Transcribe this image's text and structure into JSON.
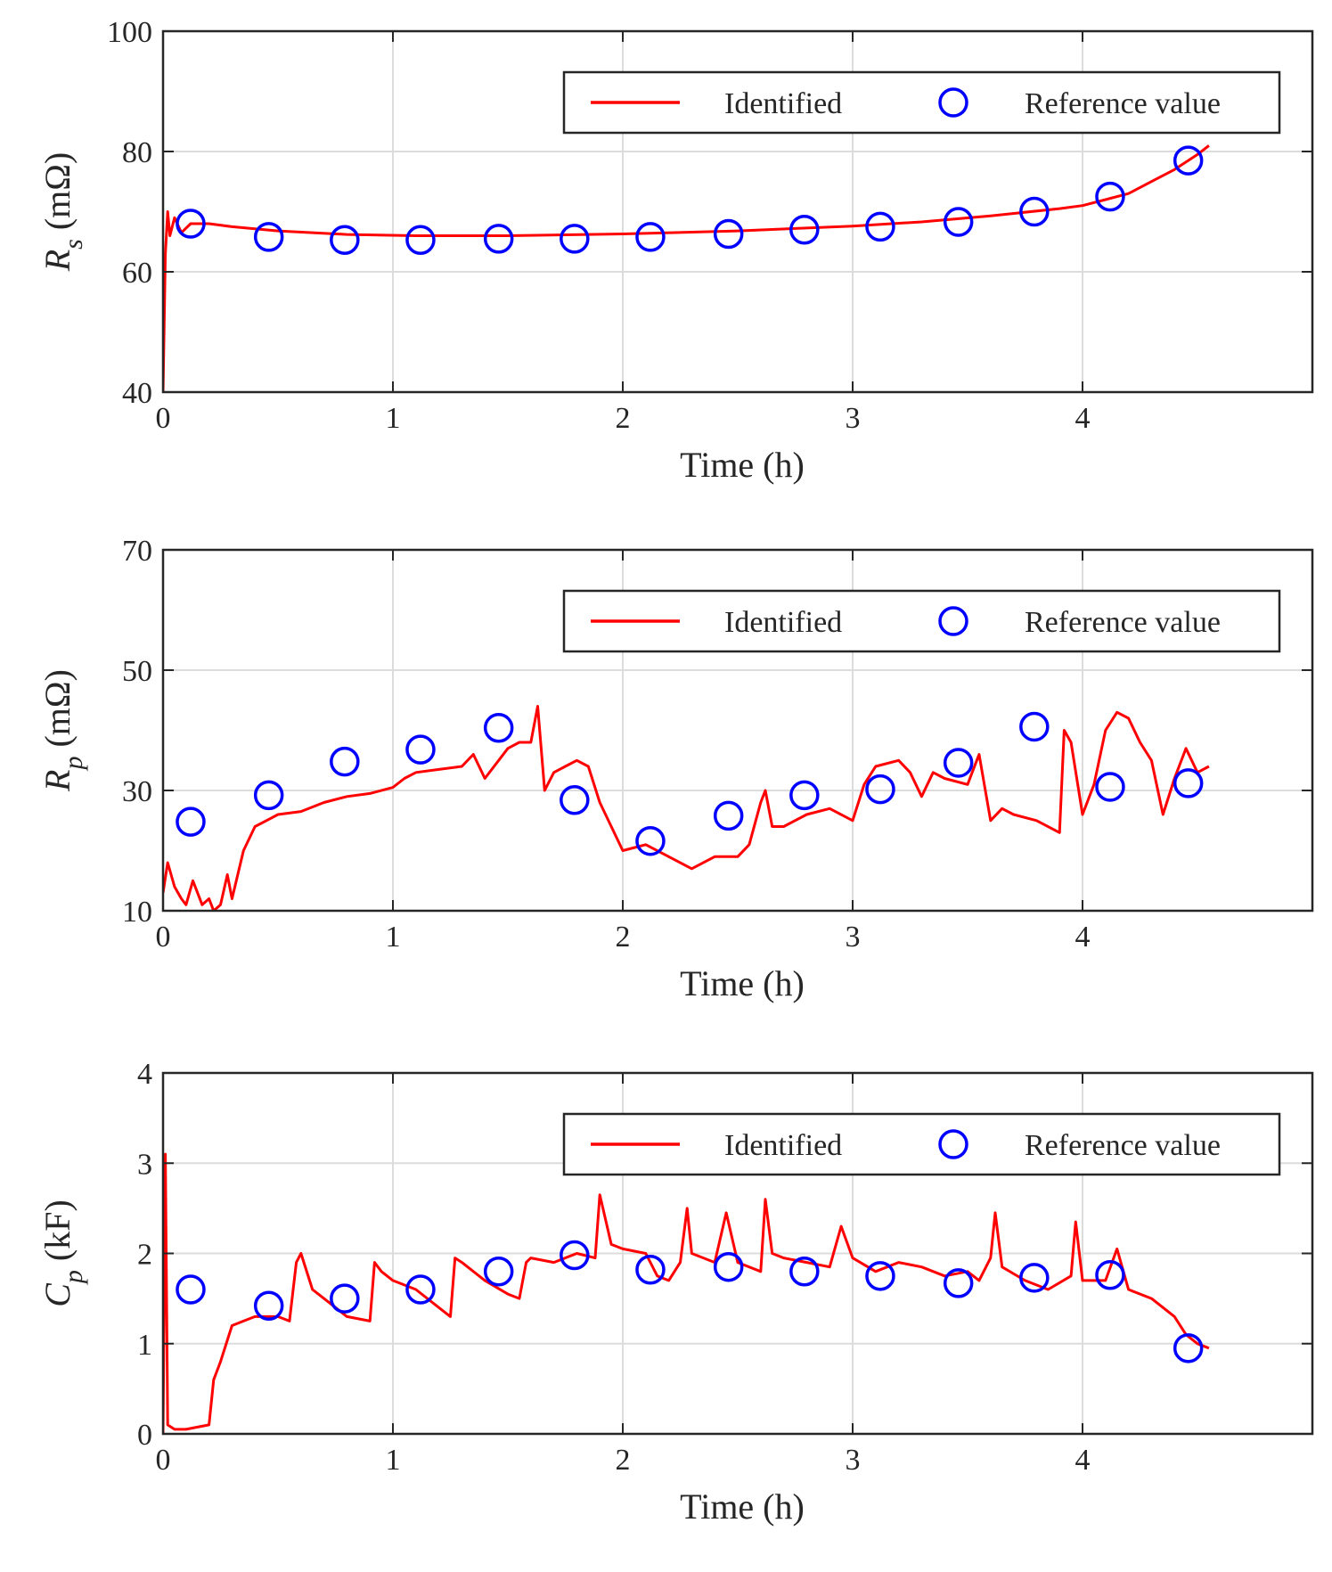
{
  "colors": {
    "identified": "#ff0000",
    "reference": "#0000ff",
    "axis": "#262626",
    "grid": "#dcdcdc"
  },
  "chart_data": [
    {
      "type": "line",
      "xlabel": "Time (h)",
      "ylabel": {
        "sym": "R",
        "sub": "s",
        "unit": " (mΩ)"
      },
      "xlim": [
        0,
        5
      ],
      "ylim": [
        40,
        100
      ],
      "xticks": [
        "0",
        "1",
        "2",
        "3",
        "4"
      ],
      "yticks": [
        "40",
        "60",
        "80",
        "100"
      ],
      "grid": true,
      "legend_position": "top-right",
      "legend": [
        "Identified",
        "Reference value"
      ],
      "series": [
        {
          "name": "Identified",
          "x": [
            0.0,
            0.01,
            0.02,
            0.03,
            0.05,
            0.08,
            0.12,
            0.2,
            0.3,
            0.5,
            0.8,
            1.1,
            1.5,
            2.0,
            2.5,
            3.0,
            3.3,
            3.6,
            3.9,
            4.0,
            4.1,
            4.2,
            4.3,
            4.4,
            4.5,
            4.55
          ],
          "y": [
            40,
            63,
            70,
            66,
            69,
            66.5,
            68,
            68,
            67.5,
            66.8,
            66.2,
            66.0,
            66.0,
            66.3,
            66.8,
            67.6,
            68.3,
            69.3,
            70.5,
            71.0,
            72.0,
            73.0,
            75.0,
            77.0,
            79.5,
            81.0
          ]
        },
        {
          "name": "Reference value",
          "x": [
            0.12,
            0.46,
            0.79,
            1.12,
            1.46,
            1.79,
            2.12,
            2.46,
            2.79,
            3.12,
            3.46,
            3.79,
            4.12,
            4.46
          ],
          "y": [
            68,
            65.8,
            65.3,
            65.3,
            65.5,
            65.5,
            65.8,
            66.3,
            67,
            67.5,
            68.3,
            70,
            72.5,
            78.5
          ]
        }
      ]
    },
    {
      "type": "line",
      "xlabel": "Time (h)",
      "ylabel": {
        "sym": "R",
        "sub": "p",
        "unit": " (mΩ)"
      },
      "xlim": [
        0,
        5
      ],
      "ylim": [
        10,
        70
      ],
      "xticks": [
        "0",
        "1",
        "2",
        "3",
        "4"
      ],
      "yticks": [
        "10",
        "30",
        "50",
        "70"
      ],
      "grid": true,
      "legend_position": "top-right",
      "legend": [
        "Identified",
        "Reference value"
      ],
      "series": [
        {
          "name": "Identified",
          "x": [
            0.0,
            0.02,
            0.05,
            0.08,
            0.1,
            0.13,
            0.17,
            0.2,
            0.22,
            0.25,
            0.28,
            0.3,
            0.35,
            0.4,
            0.45,
            0.5,
            0.6,
            0.7,
            0.8,
            0.9,
            1.0,
            1.05,
            1.1,
            1.2,
            1.3,
            1.35,
            1.4,
            1.5,
            1.55,
            1.6,
            1.63,
            1.66,
            1.7,
            1.75,
            1.8,
            1.85,
            1.9,
            1.95,
            2.0,
            2.1,
            2.2,
            2.3,
            2.4,
            2.5,
            2.55,
            2.6,
            2.62,
            2.65,
            2.7,
            2.8,
            2.9,
            3.0,
            3.05,
            3.1,
            3.2,
            3.25,
            3.3,
            3.35,
            3.4,
            3.5,
            3.55,
            3.6,
            3.65,
            3.7,
            3.8,
            3.9,
            3.92,
            3.95,
            4.0,
            4.05,
            4.1,
            4.15,
            4.2,
            4.25,
            4.3,
            4.35,
            4.4,
            4.45,
            4.5,
            4.55
          ],
          "y": [
            13,
            18,
            14,
            12,
            11,
            15,
            11,
            12,
            10,
            11,
            16,
            12,
            20,
            24,
            25,
            26,
            26.5,
            28,
            29,
            29.5,
            30.5,
            32,
            33,
            33.5,
            34,
            36,
            32,
            37,
            38,
            38,
            44,
            30,
            33,
            34,
            35,
            34,
            28,
            24,
            20,
            21,
            19,
            17,
            19,
            19,
            21,
            28,
            30,
            24,
            24,
            26,
            27,
            25,
            31,
            34,
            35,
            33,
            29,
            33,
            32,
            31,
            36,
            25,
            27,
            26,
            25,
            23,
            40,
            38,
            26,
            31,
            40,
            43,
            42,
            38,
            35,
            26,
            32,
            37,
            33,
            34
          ]
        },
        {
          "name": "Reference value",
          "x": [
            0.12,
            0.46,
            0.79,
            1.12,
            1.46,
            1.79,
            2.12,
            2.46,
            2.79,
            3.12,
            3.46,
            3.79,
            4.12,
            4.46
          ],
          "y": [
            24.8,
            29.2,
            34.8,
            36.8,
            40.4,
            28.4,
            21.6,
            25.8,
            29.2,
            30.2,
            34.6,
            40.6,
            30.6,
            31.2
          ]
        }
      ]
    },
    {
      "type": "line",
      "xlabel": "Time (h)",
      "ylabel": {
        "sym": "C",
        "sub": "p",
        "unit": " (kF)"
      },
      "xlim": [
        0,
        5
      ],
      "ylim": [
        0,
        4
      ],
      "xticks": [
        "0",
        "1",
        "2",
        "3",
        "4"
      ],
      "yticks": [
        "0",
        "1",
        "2",
        "3",
        "4"
      ],
      "grid": true,
      "legend_position": "top-right",
      "legend": [
        "Identified",
        "Reference value"
      ],
      "series": [
        {
          "name": "Identified",
          "x": [
            0.0,
            0.01,
            0.02,
            0.05,
            0.1,
            0.2,
            0.22,
            0.25,
            0.3,
            0.35,
            0.4,
            0.45,
            0.5,
            0.55,
            0.58,
            0.6,
            0.65,
            0.7,
            0.8,
            0.9,
            0.92,
            0.95,
            1.0,
            1.1,
            1.2,
            1.25,
            1.27,
            1.3,
            1.4,
            1.5,
            1.55,
            1.58,
            1.6,
            1.7,
            1.8,
            1.88,
            1.9,
            1.95,
            2.0,
            2.1,
            2.15,
            2.2,
            2.25,
            2.28,
            2.3,
            2.4,
            2.45,
            2.5,
            2.6,
            2.62,
            2.65,
            2.7,
            2.8,
            2.9,
            2.95,
            3.0,
            3.1,
            3.2,
            3.3,
            3.4,
            3.5,
            3.55,
            3.6,
            3.62,
            3.65,
            3.75,
            3.85,
            3.95,
            3.97,
            4.0,
            4.1,
            4.15,
            4.2,
            4.3,
            4.4,
            4.45,
            4.5,
            4.55
          ],
          "y": [
            0.0,
            3.1,
            0.1,
            0.05,
            0.05,
            0.1,
            0.6,
            0.8,
            1.2,
            1.25,
            1.3,
            1.3,
            1.3,
            1.25,
            1.9,
            2.0,
            1.6,
            1.5,
            1.3,
            1.25,
            1.9,
            1.8,
            1.7,
            1.6,
            1.4,
            1.3,
            1.95,
            1.9,
            1.7,
            1.55,
            1.5,
            1.9,
            1.95,
            1.9,
            2.0,
            1.95,
            2.65,
            2.1,
            2.05,
            2.0,
            1.75,
            1.7,
            1.9,
            2.5,
            2.0,
            1.9,
            2.45,
            1.9,
            1.8,
            2.6,
            2.0,
            1.95,
            1.9,
            1.85,
            2.3,
            1.95,
            1.8,
            1.9,
            1.85,
            1.75,
            1.8,
            1.7,
            1.95,
            2.45,
            1.85,
            1.7,
            1.6,
            1.75,
            2.35,
            1.7,
            1.7,
            2.05,
            1.6,
            1.5,
            1.3,
            1.1,
            1.0,
            0.95
          ]
        },
        {
          "name": "Reference value",
          "x": [
            0.12,
            0.46,
            0.79,
            1.12,
            1.46,
            1.79,
            2.12,
            2.46,
            2.79,
            3.12,
            3.46,
            3.79,
            4.12,
            4.46
          ],
          "y": [
            1.6,
            1.42,
            1.5,
            1.6,
            1.8,
            1.98,
            1.82,
            1.85,
            1.8,
            1.75,
            1.67,
            1.73,
            1.76,
            0.95
          ]
        }
      ]
    }
  ]
}
